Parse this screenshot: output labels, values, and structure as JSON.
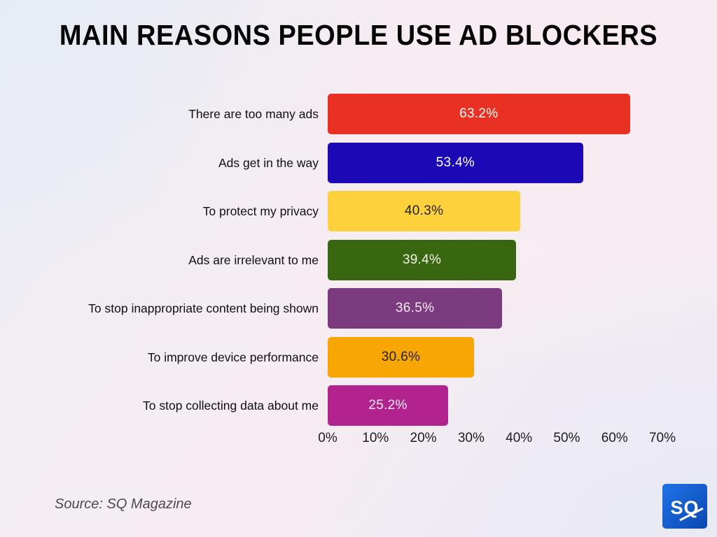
{
  "title": "MAIN REASONS PEOPLE USE AD BLOCKERS",
  "source": "Source: SQ Magazine",
  "logo": {
    "text": "SQ"
  },
  "colors": {
    "background_tint_blue": "#e9edf4",
    "background_tint_pink": "#f7edf2",
    "title_text": "#060606",
    "source_text": "#4b4b4b",
    "logo_blue_top": "#2173e8",
    "logo_blue_bottom": "#0a47b1"
  },
  "chart_data": {
    "type": "bar",
    "orientation": "horizontal",
    "title": "MAIN REASONS PEOPLE USE AD BLOCKERS",
    "categories": [
      "There are too many ads",
      "Ads get in the way",
      "To protect my privacy",
      "Ads are irrelevant to me",
      "To stop inappropriate content being shown",
      "To improve device performance",
      "To stop collecting data about me"
    ],
    "values": [
      63.2,
      53.4,
      40.3,
      39.4,
      36.5,
      30.6,
      25.2
    ],
    "value_labels": [
      "63.2%",
      "53.4%",
      "40.3%",
      "39.4%",
      "36.5%",
      "30.6%",
      "25.2%"
    ],
    "bar_colors": [
      "#e93123",
      "#1b09b6",
      "#fcd13c",
      "#396611",
      "#7d3b7f",
      "#f8a603",
      "#b3238f"
    ],
    "value_text_colors": [
      "#ffffff",
      "#ffffff",
      "#222222",
      "#f4f2e9",
      "#f2e9f1",
      "#222222",
      "#f6ecf4"
    ],
    "xlabel": "",
    "ylabel": "",
    "xlim": [
      0,
      70
    ],
    "x_tick_labels": [
      "0%",
      "10%",
      "20%",
      "30%",
      "40%",
      "50%",
      "60%",
      "70%"
    ],
    "grid": false,
    "legend": false,
    "data_labels": "inside-center"
  }
}
